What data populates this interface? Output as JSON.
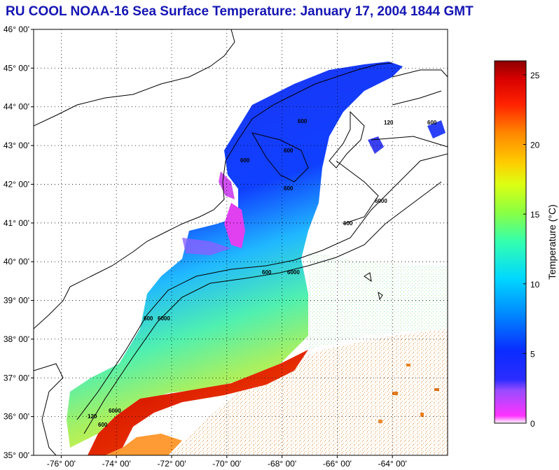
{
  "title": "RU COOL  NOAA-16  Sea Surface Temperature:  January 17, 2004 1844 GMT",
  "map": {
    "lat_labels": [
      "46° 00'",
      "45° 00'",
      "44° 00'",
      "43° 00'",
      "42° 00'",
      "41° 00'",
      "40° 00'",
      "39° 00'",
      "38° 00'",
      "37° 00'",
      "36° 00'",
      "35° 00'"
    ],
    "lon_labels": [
      "-76° 00'",
      "-74° 00'",
      "-72° 00'",
      "-70° 00'",
      "-68° 00'",
      "-66° 00'",
      "-64° 00'"
    ],
    "lat_range": [
      35,
      46
    ],
    "lon_range": [
      -77,
      -62
    ],
    "contour_labels": [
      "600",
      "600",
      "600",
      "600",
      "600",
      "600",
      "6000",
      "600",
      "6000",
      "600",
      "6000",
      "120",
      "600",
      "6000",
      "120"
    ]
  },
  "colorbar": {
    "label": "Temperature (°C)",
    "ticks": [
      "25",
      "20",
      "15",
      "10",
      "5",
      "0"
    ],
    "range": [
      0,
      26
    ]
  }
}
